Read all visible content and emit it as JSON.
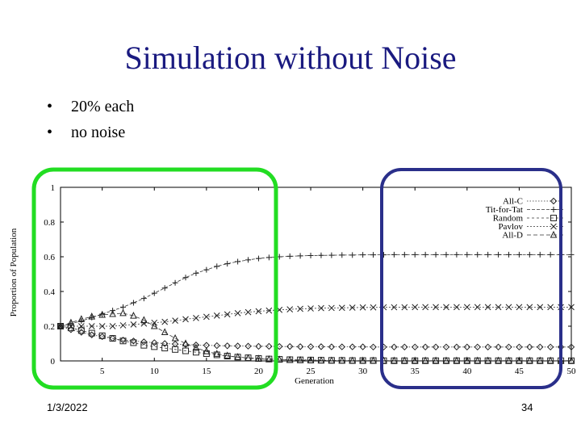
{
  "slide": {
    "title": "Simulation without Noise",
    "bullets": [
      "20% each",
      "no noise"
    ],
    "bullet_symbol": "•",
    "date": "1/3/2022",
    "page_number": "34",
    "highlight_colors": {
      "left_box": "#22dd22",
      "right_box": "#2a2f8a"
    }
  },
  "chart_data": {
    "type": "line",
    "xlabel": "Generation",
    "ylabel": "Proportion of Population",
    "xlim": [
      1,
      50
    ],
    "ylim": [
      0,
      1
    ],
    "x_ticks": [
      5,
      10,
      15,
      20,
      25,
      30,
      35,
      40,
      45,
      50
    ],
    "y_ticks": [
      0,
      0.2,
      0.4,
      0.6,
      0.8,
      1
    ],
    "y_tick_labels": [
      "0",
      "0.2",
      "0.4",
      "0.6",
      "0.8",
      "1"
    ],
    "legend_position": "top-right",
    "x": [
      1,
      2,
      3,
      4,
      5,
      6,
      7,
      8,
      9,
      10,
      11,
      12,
      13,
      14,
      15,
      16,
      17,
      18,
      19,
      20,
      21,
      22,
      23,
      24,
      25,
      26,
      27,
      28,
      29,
      30,
      31,
      32,
      33,
      34,
      35,
      36,
      37,
      38,
      39,
      40,
      41,
      42,
      43,
      44,
      45,
      46,
      47,
      48,
      49,
      50
    ],
    "series": [
      {
        "name": "All-C",
        "marker": "diamond",
        "values": [
          0.2,
          0.18,
          0.165,
          0.15,
          0.14,
          0.13,
          0.12,
          0.115,
          0.11,
          0.105,
          0.1,
          0.097,
          0.094,
          0.092,
          0.09,
          0.088,
          0.087,
          0.086,
          0.085,
          0.084,
          0.084,
          0.083,
          0.083,
          0.082,
          0.082,
          0.082,
          0.081,
          0.081,
          0.081,
          0.081,
          0.08,
          0.08,
          0.08,
          0.08,
          0.08,
          0.08,
          0.08,
          0.08,
          0.08,
          0.08,
          0.08,
          0.08,
          0.08,
          0.08,
          0.08,
          0.08,
          0.08,
          0.08,
          0.08,
          0.08
        ]
      },
      {
        "name": "Tit-for-Tat",
        "marker": "plus",
        "values": [
          0.2,
          0.215,
          0.23,
          0.25,
          0.27,
          0.29,
          0.31,
          0.335,
          0.36,
          0.39,
          0.42,
          0.45,
          0.48,
          0.505,
          0.525,
          0.545,
          0.56,
          0.572,
          0.582,
          0.59,
          0.596,
          0.6,
          0.603,
          0.605,
          0.607,
          0.608,
          0.609,
          0.61,
          0.61,
          0.611,
          0.611,
          0.611,
          0.612,
          0.612,
          0.612,
          0.612,
          0.612,
          0.612,
          0.612,
          0.612,
          0.612,
          0.612,
          0.612,
          0.612,
          0.612,
          0.612,
          0.612,
          0.612,
          0.612,
          0.612
        ]
      },
      {
        "name": "Random",
        "marker": "square",
        "values": [
          0.2,
          0.19,
          0.175,
          0.16,
          0.145,
          0.13,
          0.115,
          0.105,
          0.09,
          0.082,
          0.074,
          0.066,
          0.058,
          0.05,
          0.042,
          0.035,
          0.028,
          0.022,
          0.018,
          0.014,
          0.011,
          0.009,
          0.007,
          0.006,
          0.005,
          0.004,
          0.003,
          0.003,
          0.002,
          0.002,
          0.002,
          0.001,
          0.001,
          0.001,
          0.001,
          0.001,
          0.001,
          0.001,
          0.001,
          0.001,
          0.001,
          0.001,
          0.001,
          0.001,
          0.001,
          0.001,
          0.001,
          0.001,
          0.001,
          0.001
        ]
      },
      {
        "name": "Pavlov",
        "marker": "cross",
        "values": [
          0.2,
          0.2,
          0.2,
          0.2,
          0.2,
          0.2,
          0.205,
          0.21,
          0.215,
          0.22,
          0.225,
          0.232,
          0.24,
          0.247,
          0.254,
          0.261,
          0.268,
          0.275,
          0.281,
          0.286,
          0.29,
          0.294,
          0.297,
          0.3,
          0.302,
          0.304,
          0.305,
          0.306,
          0.307,
          0.308,
          0.308,
          0.309,
          0.309,
          0.309,
          0.31,
          0.31,
          0.31,
          0.31,
          0.31,
          0.31,
          0.31,
          0.31,
          0.31,
          0.31,
          0.31,
          0.31,
          0.31,
          0.31,
          0.31,
          0.31
        ]
      },
      {
        "name": "All-D",
        "marker": "triangle",
        "values": [
          0.2,
          0.22,
          0.24,
          0.255,
          0.265,
          0.27,
          0.275,
          0.26,
          0.235,
          0.2,
          0.165,
          0.13,
          0.1,
          0.075,
          0.055,
          0.04,
          0.03,
          0.022,
          0.016,
          0.012,
          0.009,
          0.007,
          0.005,
          0.004,
          0.003,
          0.002,
          0.002,
          0.001,
          0.001,
          0.001,
          0.001,
          0.001,
          0.001,
          0.001,
          0.001,
          0.001,
          0.001,
          0.001,
          0.001,
          0.001,
          0.001,
          0.001,
          0.001,
          0.001,
          0.001,
          0.001,
          0.001,
          0.001,
          0.001,
          0.001
        ]
      }
    ]
  }
}
